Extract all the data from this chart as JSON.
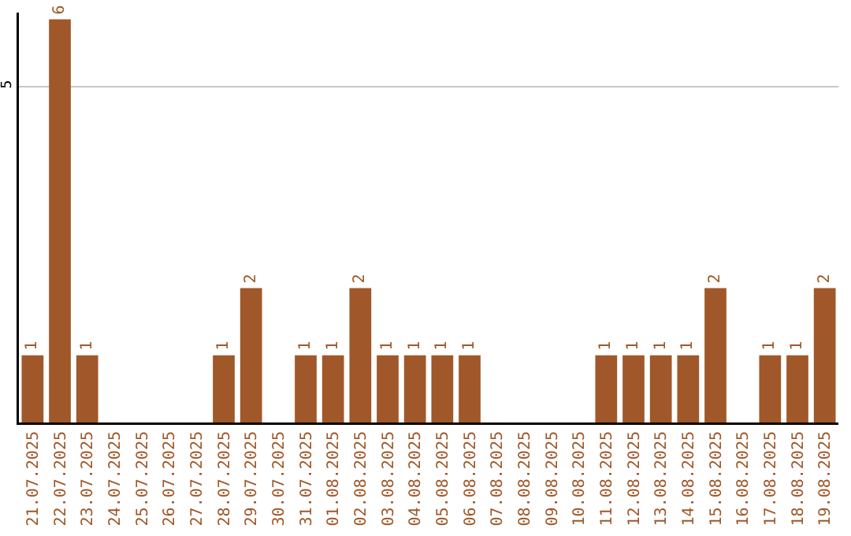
{
  "chart_data": {
    "type": "bar",
    "categories": [
      "21.07.2025",
      "22.07.2025",
      "23.07.2025",
      "24.07.2025",
      "25.07.2025",
      "26.07.2025",
      "27.07.2025",
      "28.07.2025",
      "29.07.2025",
      "30.07.2025",
      "31.07.2025",
      "01.08.2025",
      "02.08.2025",
      "03.08.2025",
      "04.08.2025",
      "05.08.2025",
      "06.08.2025",
      "07.08.2025",
      "08.08.2025",
      "09.08.2025",
      "10.08.2025",
      "11.08.2025",
      "12.08.2025",
      "13.08.2025",
      "14.08.2025",
      "15.08.2025",
      "16.08.2025",
      "17.08.2025",
      "18.08.2025",
      "19.08.2025"
    ],
    "values": [
      1,
      6,
      1,
      0,
      0,
      0,
      0,
      1,
      2,
      0,
      1,
      1,
      2,
      1,
      1,
      1,
      1,
      0,
      0,
      0,
      0,
      1,
      1,
      1,
      1,
      2,
      0,
      1,
      1,
      2
    ],
    "value_labels": [
      "1",
      "6",
      "1",
      null,
      null,
      null,
      null,
      "1",
      "2",
      null,
      "1",
      "1",
      "2",
      "1",
      "1",
      "1",
      "1",
      null,
      null,
      null,
      null,
      "1",
      "1",
      "1",
      "1",
      "2",
      null,
      "1",
      "1",
      "2"
    ],
    "color": "#a0582a",
    "ylim": [
      0,
      6.1
    ],
    "yticks": [
      5
    ],
    "grid": "y"
  }
}
